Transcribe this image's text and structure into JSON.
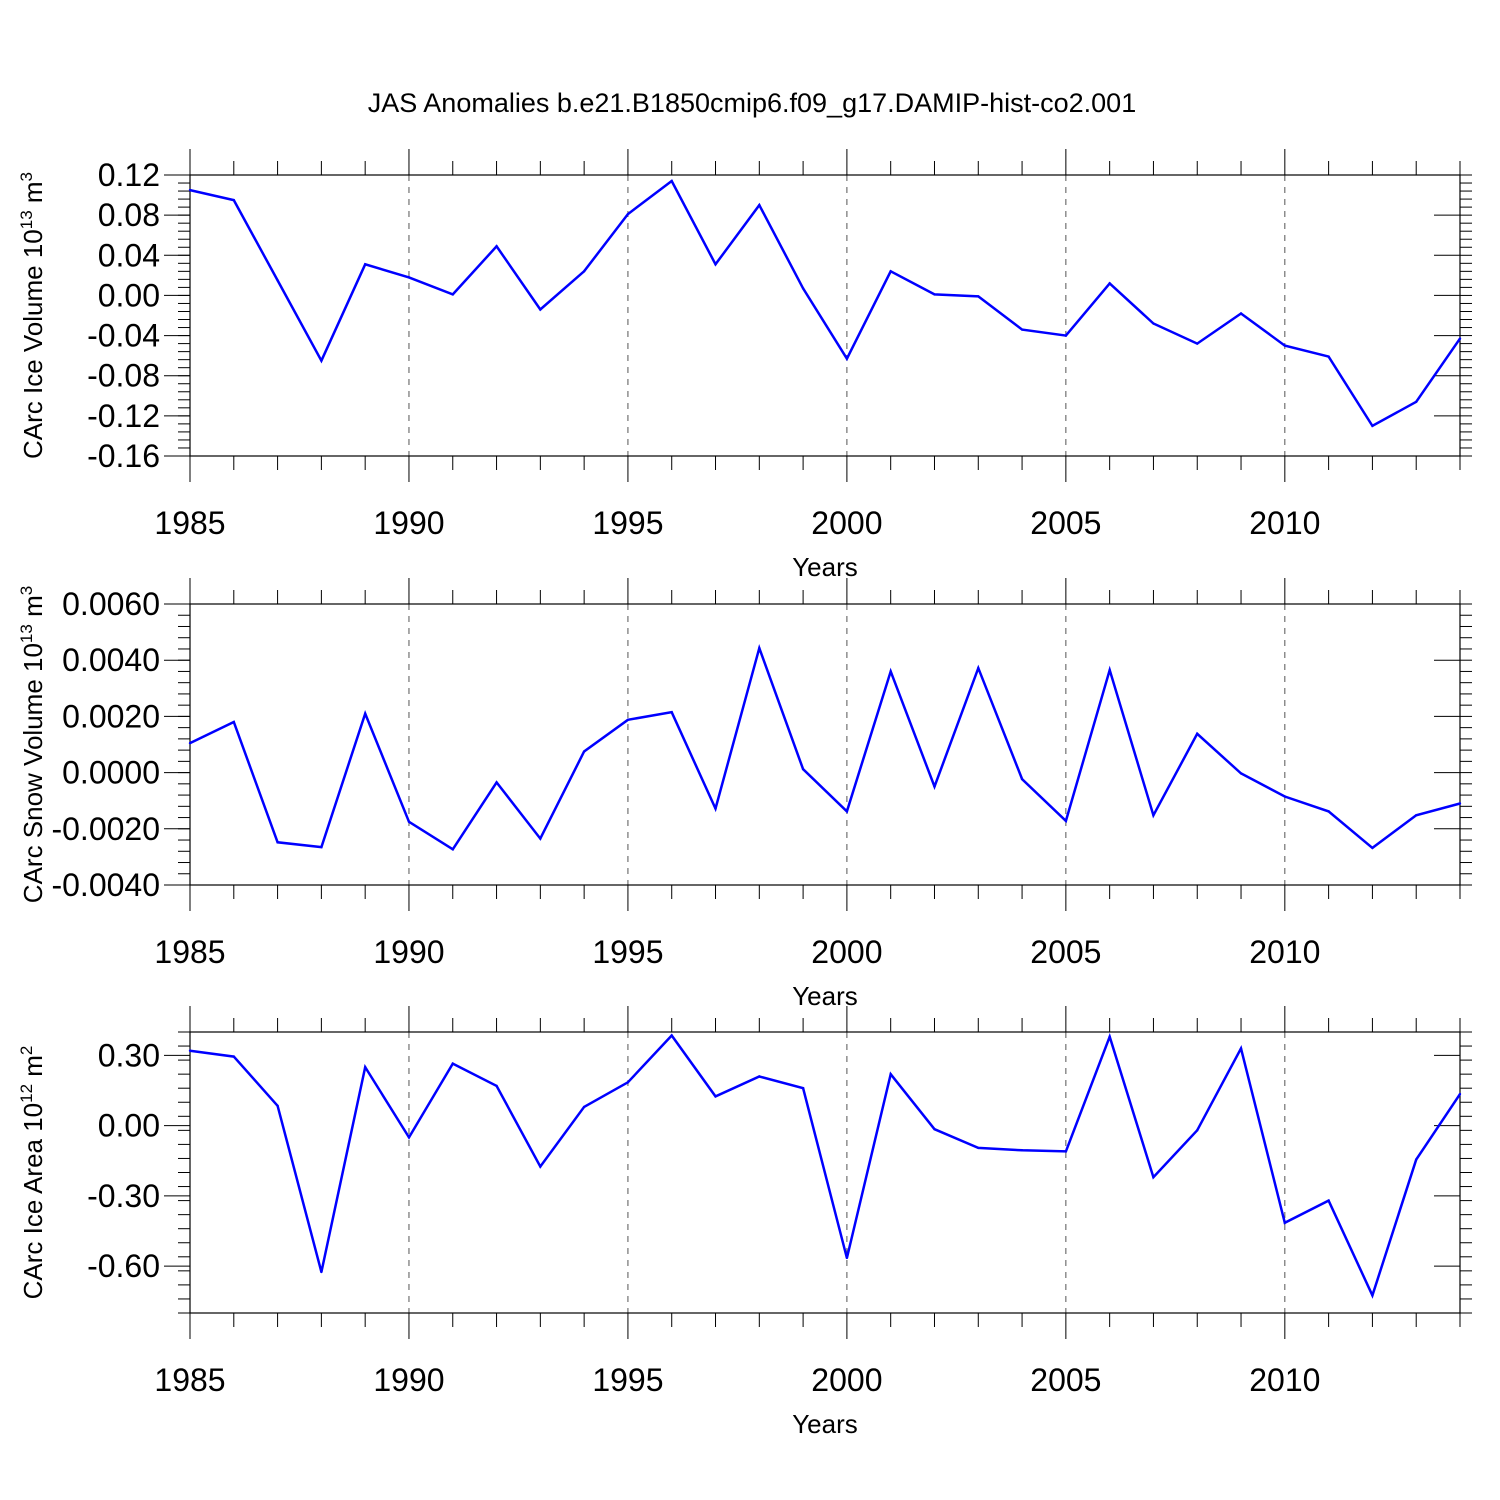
{
  "title": "JAS Anomalies b.e21.B1850cmip6.f09_g17.DAMIP-hist-co2.001",
  "chart_data": [
    {
      "type": "line",
      "name": "ice-volume",
      "ylabel": "CArc Ice Volume 10",
      "ylabel_sup": "13",
      "ylabel_unit": " m",
      "ylabel_unit_sup": "3",
      "xlabel": "Years",
      "xlim": [
        1985,
        2014
      ],
      "ylim": [
        -0.16,
        0.12
      ],
      "xticks": [
        1985,
        1990,
        1995,
        2000,
        2005,
        2010
      ],
      "xtick_labels": [
        "1985",
        "1990",
        "1995",
        "2000",
        "2005",
        "2010"
      ],
      "yticks": [
        0.12,
        0.08,
        0.04,
        0.0,
        -0.04,
        -0.08,
        -0.12,
        -0.16
      ],
      "ytick_labels": [
        "0.12",
        "0.08",
        "0.04",
        "0.00",
        "-0.04",
        "-0.08",
        "-0.12",
        "-0.16"
      ],
      "x": [
        1985,
        1986,
        1987,
        1988,
        1989,
        1990,
        1991,
        1992,
        1993,
        1994,
        1995,
        1996,
        1997,
        1998,
        1999,
        2000,
        2001,
        2002,
        2003,
        2004,
        2005,
        2006,
        2007,
        2008,
        2009,
        2010,
        2011,
        2012,
        2013,
        2014
      ],
      "values": [
        0.105,
        0.095,
        0.015,
        -0.065,
        0.031,
        0.018,
        0.001,
        0.049,
        -0.014,
        0.024,
        0.081,
        0.114,
        0.031,
        0.09,
        0.007,
        -0.063,
        0.024,
        0.001,
        -0.001,
        -0.034,
        -0.04,
        0.012,
        -0.028,
        -0.048,
        -0.018,
        -0.05,
        -0.061,
        -0.13,
        -0.106,
        -0.043
      ],
      "color": "#0000ff"
    },
    {
      "type": "line",
      "name": "snow-volume",
      "ylabel": "CArc Snow Volume 10",
      "ylabel_sup": "13",
      "ylabel_unit": " m",
      "ylabel_unit_sup": "3",
      "xlabel": "Years",
      "xlim": [
        1985,
        2014
      ],
      "ylim": [
        -0.004,
        0.006
      ],
      "xticks": [
        1985,
        1990,
        1995,
        2000,
        2005,
        2010
      ],
      "xtick_labels": [
        "1985",
        "1990",
        "1995",
        "2000",
        "2005",
        "2010"
      ],
      "yticks": [
        0.006,
        0.004,
        0.002,
        0.0,
        -0.002,
        -0.004
      ],
      "ytick_labels": [
        "0.0060",
        "0.0040",
        "0.0020",
        "0.0000",
        "-0.0020",
        "-0.0040"
      ],
      "x": [
        1985,
        1986,
        1987,
        1988,
        1989,
        1990,
        1991,
        1992,
        1993,
        1994,
        1995,
        1996,
        1997,
        1998,
        1999,
        2000,
        2001,
        2002,
        2003,
        2004,
        2005,
        2006,
        2007,
        2008,
        2009,
        2010,
        2011,
        2012,
        2013,
        2014
      ],
      "values": [
        0.00105,
        0.0018,
        -0.00248,
        -0.00265,
        0.0021,
        -0.00175,
        -0.00273,
        -0.00035,
        -0.00235,
        0.00075,
        0.00188,
        0.00215,
        -0.00128,
        0.00443,
        0.00012,
        -0.00138,
        0.0036,
        -0.0005,
        0.00372,
        -0.00023,
        -0.00172,
        0.00365,
        -0.00152,
        0.00138,
        -3e-05,
        -0.00085,
        -0.00138,
        -0.00268,
        -0.00152,
        -0.0011
      ],
      "color": "#0000ff"
    },
    {
      "type": "line",
      "name": "ice-area",
      "ylabel": "CArc Ice Area 10",
      "ylabel_sup": "12",
      "ylabel_unit": " m",
      "ylabel_unit_sup": "2",
      "xlabel": "Years",
      "xlim": [
        1985,
        2014
      ],
      "ylim": [
        -0.8,
        0.4
      ],
      "xticks": [
        1985,
        1990,
        1995,
        2000,
        2005,
        2010
      ],
      "xtick_labels": [
        "1985",
        "1990",
        "1995",
        "2000",
        "2005",
        "2010"
      ],
      "yticks": [
        0.3,
        0.0,
        -0.3,
        -0.6
      ],
      "ytick_labels": [
        "0.30",
        "0.00",
        "-0.30",
        "-0.60"
      ],
      "x": [
        1985,
        1986,
        1987,
        1988,
        1989,
        1990,
        1991,
        1992,
        1993,
        1994,
        1995,
        1996,
        1997,
        1998,
        1999,
        2000,
        2001,
        2002,
        2003,
        2004,
        2005,
        2006,
        2007,
        2008,
        2009,
        2010,
        2011,
        2012,
        2013,
        2014
      ],
      "values": [
        0.32,
        0.295,
        0.085,
        -0.625,
        0.25,
        -0.05,
        0.265,
        0.17,
        -0.175,
        0.08,
        0.185,
        0.385,
        0.125,
        0.21,
        0.16,
        -0.565,
        0.22,
        -0.015,
        -0.095,
        -0.105,
        -0.11,
        0.38,
        -0.22,
        -0.02,
        0.33,
        -0.415,
        -0.32,
        -0.725,
        -0.145,
        0.135
      ],
      "color": "#0000ff"
    }
  ]
}
